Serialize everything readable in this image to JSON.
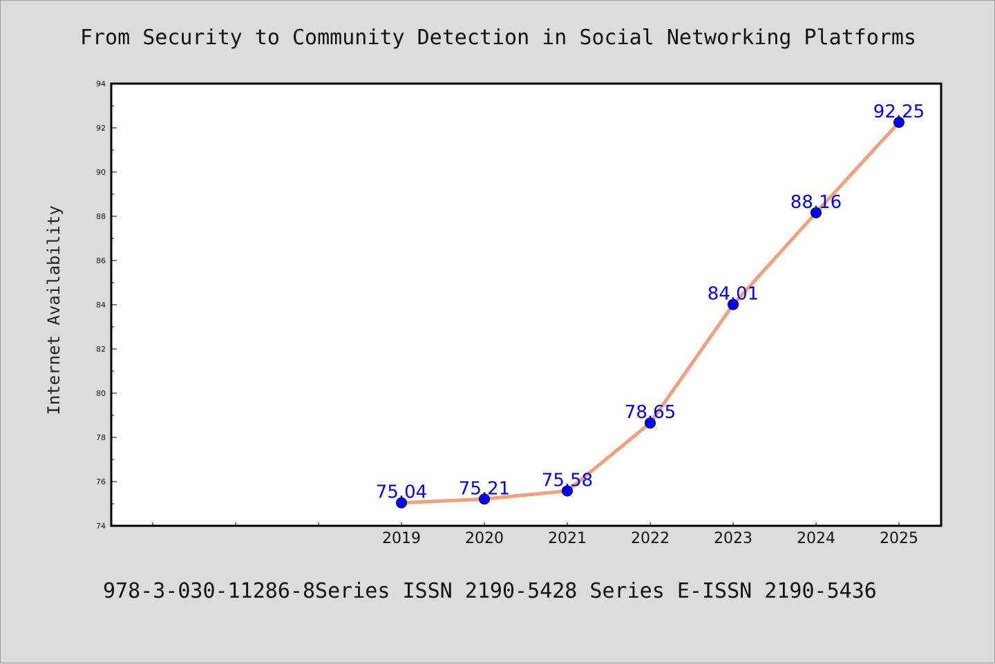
{
  "chart_data": {
    "type": "line",
    "title": "From Security to Community Detection in Social Networking Platforms",
    "xlabel": "",
    "ylabel": "Internet Availability",
    "categories": [
      "2019",
      "2020",
      "2021",
      "2022",
      "2023",
      "2024",
      "2025"
    ],
    "series": [
      {
        "values": [
          75.04,
          75.21,
          75.58,
          78.65,
          84.01,
          88.16,
          92.25
        ],
        "data_labels": [
          "75.04",
          "75.21",
          "75.58",
          "78.65",
          "84.01",
          "88.16",
          "92.25"
        ],
        "line_color": "#f4a07e",
        "marker_color": "#0000ff"
      }
    ],
    "ylim": [
      74,
      94
    ],
    "yticks": [
      "74",
      "76",
      "78",
      "80",
      "82",
      "84",
      "86",
      "88",
      "90",
      "92",
      "94"
    ],
    "grid": false,
    "legend": "none"
  },
  "footer": {
    "text": "978-3-030-11286-8Series ISSN 2190-5428 Series E-ISSN 2190-5436"
  },
  "colors": {
    "background": "#dcdcdc",
    "plot_background": "#ffffff",
    "line": "#f4a07e",
    "marker": "#0000ff",
    "data_label": "#0000ff"
  }
}
